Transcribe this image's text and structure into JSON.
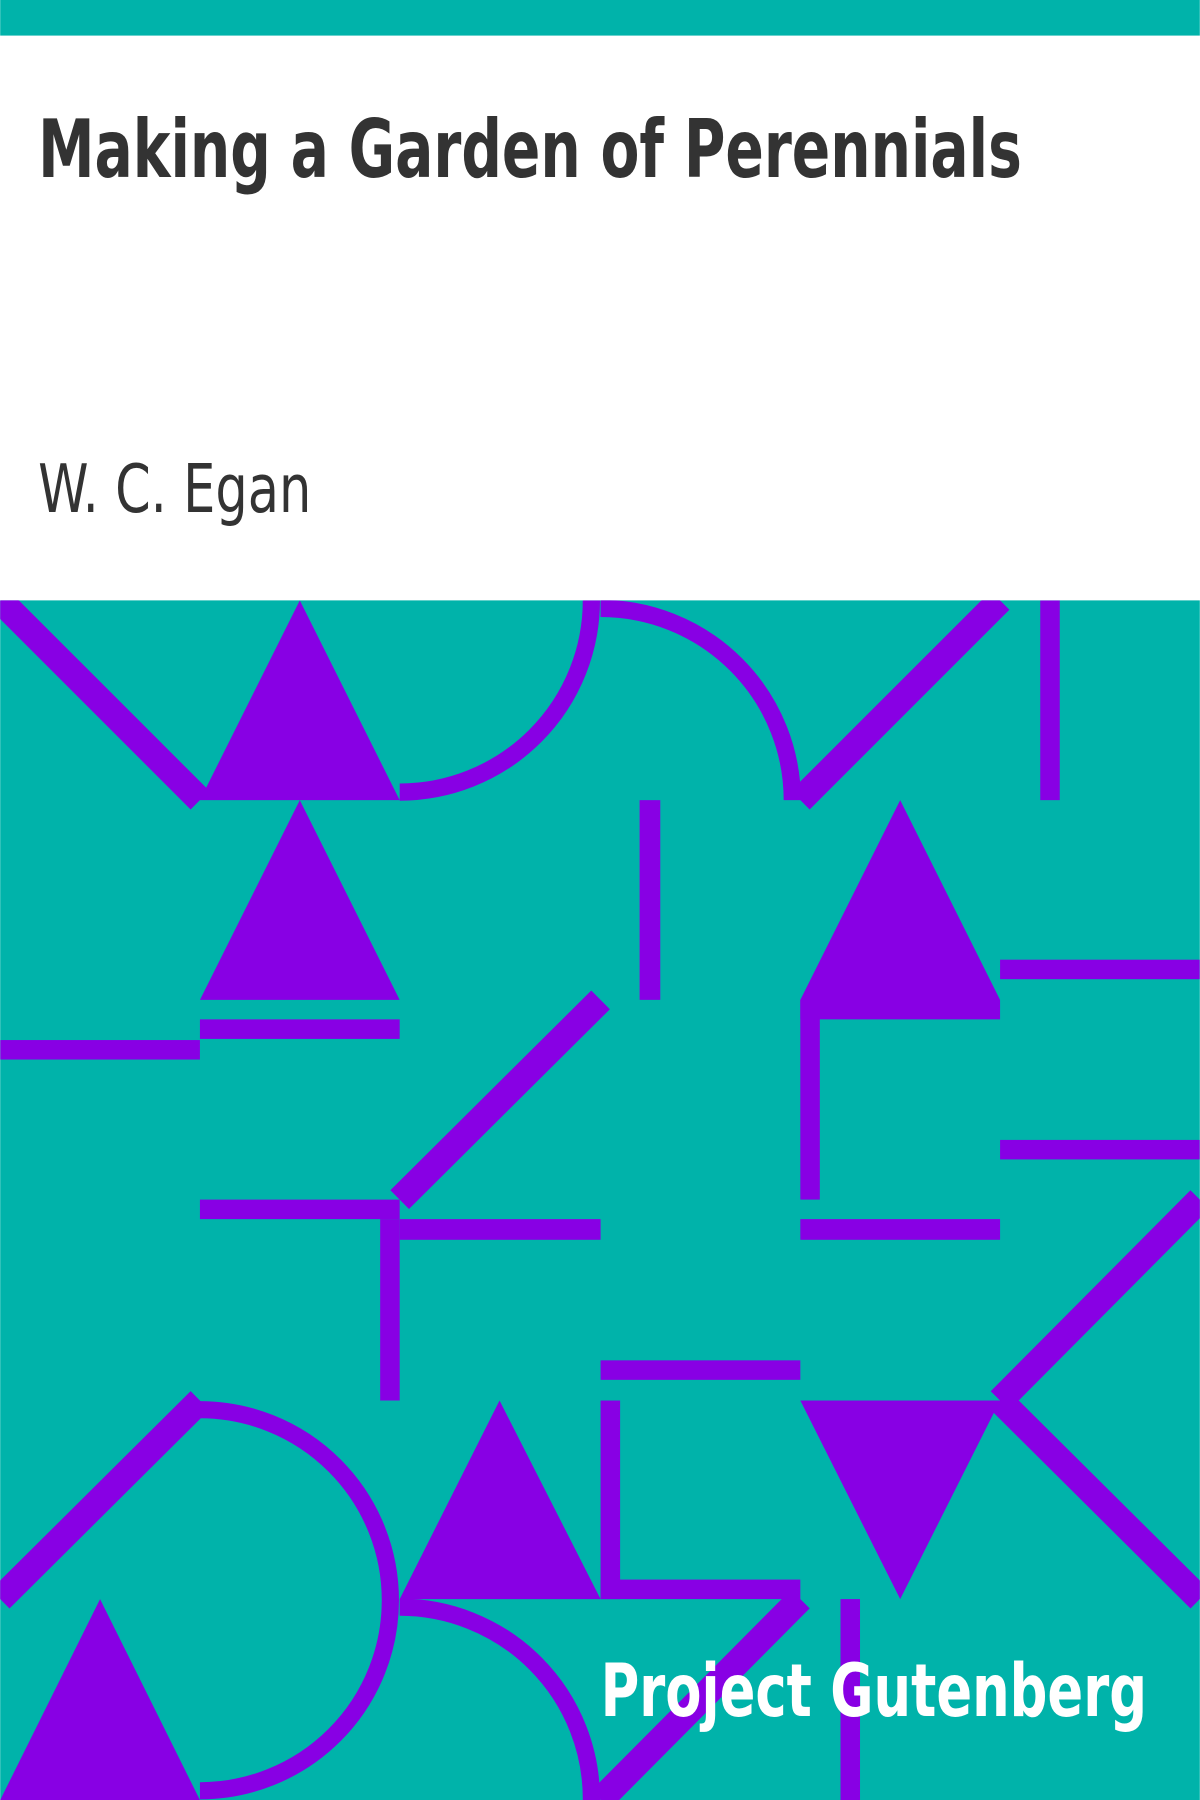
{
  "cover": {
    "title": "Making a Garden of Perennials",
    "author": "W. C. Egan",
    "publisher": "Project Gutenberg"
  }
}
